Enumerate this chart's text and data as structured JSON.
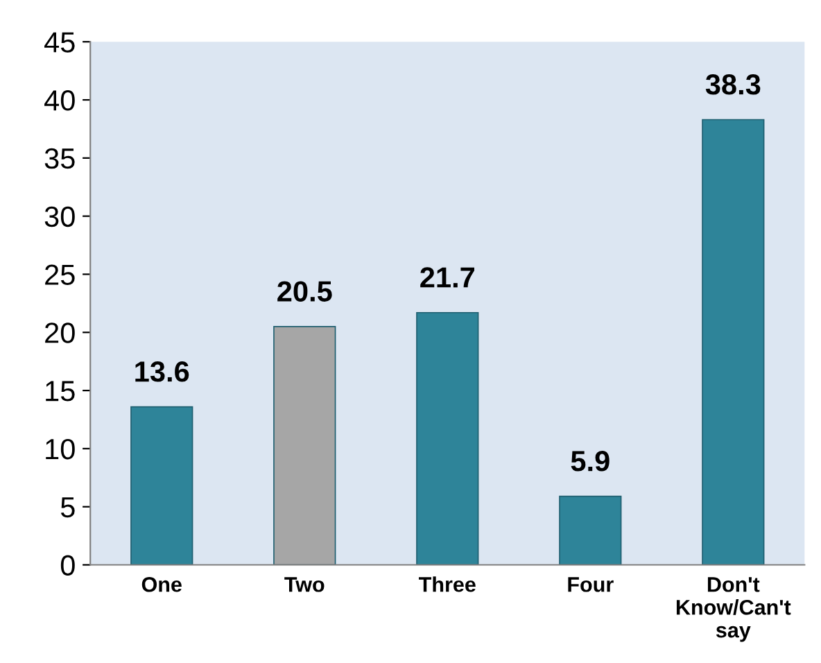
{
  "chart_data": {
    "type": "bar",
    "categories": [
      "One",
      "Two",
      "Three",
      "Four",
      "Don't\nKnow/Can't\nsay"
    ],
    "values": [
      13.6,
      20.5,
      21.7,
      5.9,
      38.3
    ],
    "colors": [
      "#2e8499",
      "#a6a6a6",
      "#2e8499",
      "#2e8499",
      "#2e8499"
    ],
    "ylim": [
      0,
      45
    ],
    "yticks": [
      0,
      5,
      10,
      15,
      20,
      25,
      30,
      35,
      40,
      45
    ],
    "data_labels": true,
    "grid": false,
    "legend": false
  }
}
